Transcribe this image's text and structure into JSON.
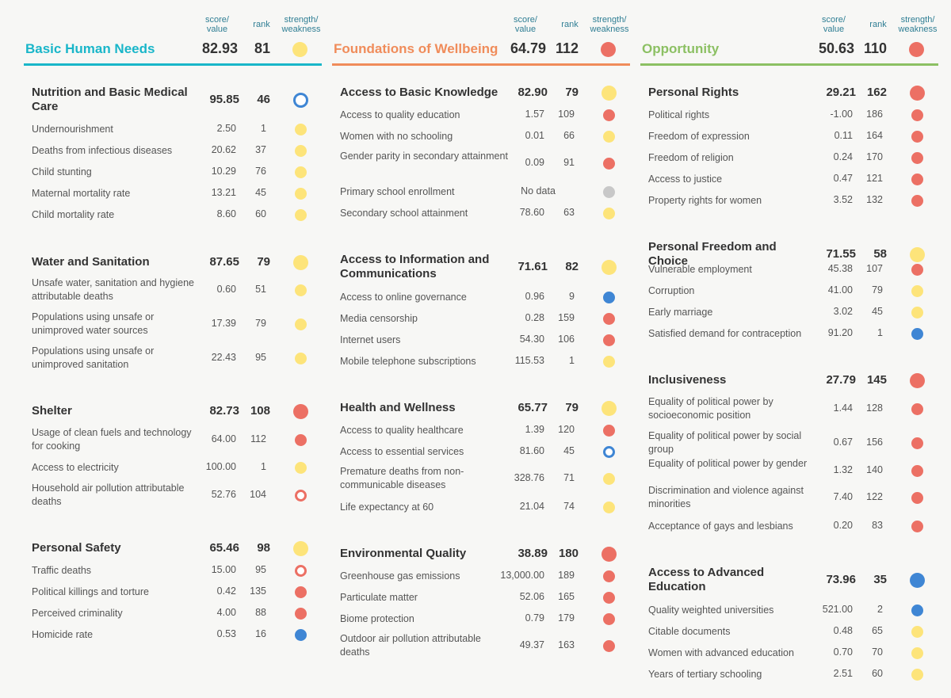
{
  "colors": {
    "yellow": "#fde47a",
    "red": "#ec7064",
    "blue": "#3f86d4",
    "gray": "#c8c8c8"
  },
  "header_labels": {
    "score": "score/ value",
    "rank": "rank",
    "sw": "strength/ weakness"
  },
  "columns": [
    {
      "title": "Basic Human Needs",
      "score": "82.93",
      "rank": "81",
      "status": "yellow",
      "accent": "#19b6c9",
      "sections": [
        {
          "title": "Nutrition and Basic Medical Care",
          "score": "95.85",
          "rank": "46",
          "status": "blue-ring",
          "rows": [
            {
              "name": "Undernourishment",
              "value": "2.50",
              "rank": "1",
              "status": "yellow"
            },
            {
              "name": "Deaths from infectious diseases",
              "value": "20.62",
              "rank": "37",
              "status": "yellow"
            },
            {
              "name": "Child stunting",
              "value": "10.29",
              "rank": "76",
              "status": "yellow"
            },
            {
              "name": "Maternal mortality rate",
              "value": "13.21",
              "rank": "45",
              "status": "yellow"
            },
            {
              "name": "Child mortality rate",
              "value": "8.60",
              "rank": "60",
              "status": "yellow"
            }
          ]
        },
        {
          "title": "Water and Sanitation",
          "score": "87.65",
          "rank": "79",
          "status": "yellow",
          "rows": [
            {
              "name": "Unsafe water, sanitation and hygiene attributable deaths",
              "value": "0.60",
              "rank": "51",
              "status": "yellow"
            },
            {
              "name": "Populations using unsafe or unimproved water sources",
              "value": "17.39",
              "rank": "79",
              "status": "yellow"
            },
            {
              "name": "Populations using unsafe or unimproved sanitation",
              "value": "22.43",
              "rank": "95",
              "status": "yellow"
            }
          ]
        },
        {
          "title": "Shelter",
          "score": "82.73",
          "rank": "108",
          "status": "red",
          "rows": [
            {
              "name": "Usage of clean fuels and technology for cooking",
              "value": "64.00",
              "rank": "112",
              "status": "red"
            },
            {
              "name": "Access to electricity",
              "value": "100.00",
              "rank": "1",
              "status": "yellow"
            },
            {
              "name": "Household air pollution attributable deaths",
              "value": "52.76",
              "rank": "104",
              "status": "red-ring"
            }
          ]
        },
        {
          "title": "Personal Safety",
          "score": "65.46",
          "rank": "98",
          "status": "yellow",
          "rows": [
            {
              "name": "Traffic deaths",
              "value": "15.00",
              "rank": "95",
              "status": "red-ring"
            },
            {
              "name": "Political killings and torture",
              "value": "0.42",
              "rank": "135",
              "status": "red"
            },
            {
              "name": "Perceived criminality",
              "value": "4.00",
              "rank": "88",
              "status": "red"
            },
            {
              "name": "Homicide rate",
              "value": "0.53",
              "rank": "16",
              "status": "blue"
            }
          ]
        }
      ]
    },
    {
      "title": "Foundations of Wellbeing",
      "score": "64.79",
      "rank": "112",
      "status": "red",
      "accent": "#f08c5a",
      "sections": [
        {
          "title": "Access to Basic Knowledge",
          "score": "82.90",
          "rank": "79",
          "status": "yellow",
          "rows": [
            {
              "name": "Access to quality education",
              "value": "1.57",
              "rank": "109",
              "status": "red"
            },
            {
              "name": "Women with no schooling",
              "value": "0.01",
              "rank": "66",
              "status": "yellow"
            },
            {
              "name": "Gender parity in secondary attainment",
              "value": "0.09",
              "rank": "91",
              "status": "red"
            },
            {
              "name": "Primary school enrollment",
              "value": "No data",
              "rank": "",
              "status": "gray"
            },
            {
              "name": "Secondary school attainment",
              "value": "78.60",
              "rank": "63",
              "status": "yellow"
            }
          ]
        },
        {
          "title": "Access to Information and Communications",
          "score": "71.61",
          "rank": "82",
          "status": "yellow",
          "rows": [
            {
              "name": "Access to online governance",
              "value": "0.96",
              "rank": "9",
              "status": "blue"
            },
            {
              "name": "Media censorship",
              "value": "0.28",
              "rank": "159",
              "status": "red"
            },
            {
              "name": "Internet users",
              "value": "54.30",
              "rank": "106",
              "status": "red"
            },
            {
              "name": "Mobile telephone subscriptions",
              "value": "115.53",
              "rank": "1",
              "status": "yellow"
            }
          ]
        },
        {
          "title": "Health and Wellness",
          "score": "65.77",
          "rank": "79",
          "status": "yellow",
          "rows": [
            {
              "name": "Access to quality healthcare",
              "value": "1.39",
              "rank": "120",
              "status": "red"
            },
            {
              "name": "Access to essential services",
              "value": "81.60",
              "rank": "45",
              "status": "blue-ring"
            },
            {
              "name": "Premature deaths from non-communicable diseases",
              "value": "328.76",
              "rank": "71",
              "status": "yellow"
            },
            {
              "name": "Life expectancy at 60",
              "value": "21.04",
              "rank": "74",
              "status": "yellow"
            }
          ]
        },
        {
          "title": "Environmental Quality",
          "score": "38.89",
          "rank": "180",
          "status": "red",
          "rows": [
            {
              "name": "Greenhouse gas emissions",
              "value": "13,000.00",
              "rank": "189",
              "status": "red"
            },
            {
              "name": "Particulate matter",
              "value": "52.06",
              "rank": "165",
              "status": "red"
            },
            {
              "name": "Biome protection",
              "value": "0.79",
              "rank": "179",
              "status": "red"
            },
            {
              "name": "Outdoor air pollution attributable deaths",
              "value": "49.37",
              "rank": "163",
              "status": "red"
            }
          ]
        }
      ]
    },
    {
      "title": "Opportunity",
      "score": "50.63",
      "rank": "110",
      "status": "red",
      "accent": "#8cc063",
      "sections": [
        {
          "title": "Personal Rights",
          "score": "29.21",
          "rank": "162",
          "status": "red",
          "rows": [
            {
              "name": "Political rights",
              "value": "-1.00",
              "rank": "186",
              "status": "red"
            },
            {
              "name": "Freedom of expression",
              "value": "0.11",
              "rank": "164",
              "status": "red"
            },
            {
              "name": "Freedom of religion",
              "value": "0.24",
              "rank": "170",
              "status": "red"
            },
            {
              "name": "Access to justice",
              "value": "0.47",
              "rank": "121",
              "status": "red"
            },
            {
              "name": "Property rights for women",
              "value": "3.52",
              "rank": "132",
              "status": "red"
            }
          ]
        },
        {
          "title": "Personal Freedom and Choice",
          "score": "71.55",
          "rank": "58",
          "status": "yellow",
          "rows": [
            {
              "name": "Vulnerable employment",
              "value": "45.38",
              "rank": "107",
              "status": "red"
            },
            {
              "name": "Corruption",
              "value": "41.00",
              "rank": "79",
              "status": "yellow"
            },
            {
              "name": "Early marriage",
              "value": "3.02",
              "rank": "45",
              "status": "yellow"
            },
            {
              "name": "Satisfied demand for contraception",
              "value": "91.20",
              "rank": "1",
              "status": "blue"
            }
          ]
        },
        {
          "title": "Inclusiveness",
          "score": "27.79",
          "rank": "145",
          "status": "red",
          "rows": [
            {
              "name": "Equality of political power by socioeconomic position",
              "value": "1.44",
              "rank": "128",
              "status": "red"
            },
            {
              "name": "Equality of political power by social group",
              "value": "0.67",
              "rank": "156",
              "status": "red"
            },
            {
              "name": "Equality of political power by gender",
              "value": "1.32",
              "rank": "140",
              "status": "red"
            },
            {
              "name": "Discrimination and violence against minorities",
              "value": "7.40",
              "rank": "122",
              "status": "red"
            },
            {
              "name": "Acceptance of gays and lesbians",
              "value": "0.20",
              "rank": "83",
              "status": "red"
            }
          ]
        },
        {
          "title": "Access to Advanced Education",
          "score": "73.96",
          "rank": "35",
          "status": "blue",
          "rows": [
            {
              "name": "Quality weighted universities",
              "value": "521.00",
              "rank": "2",
              "status": "blue"
            },
            {
              "name": "Citable documents",
              "value": "0.48",
              "rank": "65",
              "status": "yellow"
            },
            {
              "name": "Women with advanced education",
              "value": "0.70",
              "rank": "70",
              "status": "yellow"
            },
            {
              "name": "Years of tertiary schooling",
              "value": "2.51",
              "rank": "60",
              "status": "yellow"
            }
          ]
        }
      ]
    }
  ]
}
